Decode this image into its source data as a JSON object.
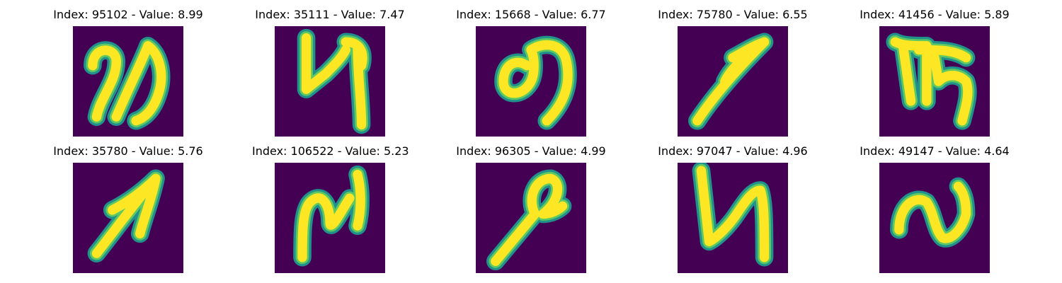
{
  "figure": {
    "colors": {
      "background": "#440154",
      "edge": "#21918c",
      "mid": "#5ec962",
      "ink": "#fde725"
    },
    "panels": [
      {
        "title": "Index: 95102 - Value: 8.99",
        "image": {
          "index": 95102,
          "value": 8.99
        }
      },
      {
        "title": "Index: 35111 - Value: 7.47",
        "image": {
          "index": 35111,
          "value": 7.47
        }
      },
      {
        "title": "Index: 15668 - Value: 6.77",
        "image": {
          "index": 15668,
          "value": 6.77
        }
      },
      {
        "title": "Index: 75780 - Value: 6.55",
        "image": {
          "index": 75780,
          "value": 6.55
        }
      },
      {
        "title": "Index: 41456 - Value: 5.89",
        "image": {
          "index": 41456,
          "value": 5.89
        }
      },
      {
        "title": "Index: 35780 - Value: 5.76",
        "image": {
          "index": 35780,
          "value": 5.76
        }
      },
      {
        "title": "Index: 106522 - Value: 5.23",
        "image": {
          "index": 106522,
          "value": 5.23
        }
      },
      {
        "title": "Index: 96305 - Value: 4.99",
        "image": {
          "index": 96305,
          "value": 4.99
        }
      },
      {
        "title": "Index: 97047 - Value: 4.96",
        "image": {
          "index": 97047,
          "value": 4.96
        }
      },
      {
        "title": "Index: 49147 - Value: 4.64",
        "image": {
          "index": 49147,
          "value": 4.64
        }
      }
    ]
  }
}
